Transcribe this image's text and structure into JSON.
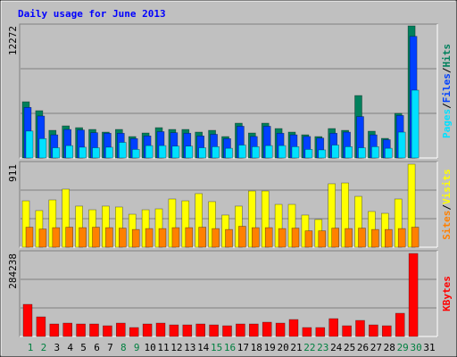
{
  "chart_data": [
    {
      "type": "bar",
      "title": "Daily usage for June 2013",
      "legend_separator": "/",
      "ylim": [
        0,
        12272
      ],
      "yticks": [
        12272
      ],
      "series": [
        {
          "name": "Hits",
          "color": "#00805c",
          "values": [
            5224,
            4395,
            2570,
            2985,
            2819,
            2653,
            2405,
            2653,
            1990,
            2322,
            2819,
            2653,
            2653,
            2405,
            2570,
            1990,
            3234,
            2322,
            3234,
            2736,
            2405,
            2156,
            1990,
            2736,
            2570,
            5804,
            2488,
            1824,
            4146,
            12272,
            0
          ]
        },
        {
          "name": "Files",
          "color": "#0040ff",
          "values": [
            4700,
            3900,
            2150,
            2650,
            2600,
            2350,
            2300,
            2300,
            1800,
            2050,
            2450,
            2350,
            2300,
            2050,
            2200,
            1800,
            2950,
            2000,
            2950,
            2300,
            2150,
            2000,
            1850,
            2300,
            2400,
            3850,
            2150,
            1700,
            3950,
            11300,
            0
          ]
        },
        {
          "name": "Pages",
          "color": "#00e0ff",
          "values": [
            2500,
            1800,
            950,
            1150,
            1000,
            950,
            1000,
            1450,
            800,
            1150,
            1150,
            1100,
            1100,
            950,
            1050,
            900,
            1200,
            1050,
            1150,
            1150,
            1050,
            800,
            750,
            1200,
            1050,
            950,
            1050,
            900,
            2400,
            6300,
            0
          ]
        }
      ]
    },
    {
      "type": "bar",
      "ylim": [
        0,
        911
      ],
      "yticks": [
        911
      ],
      "series": [
        {
          "name": "Visits",
          "color": "#ffff00",
          "values": [
            509,
            402,
            519,
            637,
            451,
            411,
            451,
            441,
            362,
            411,
            421,
            529,
            509,
            588,
            500,
            353,
            451,
            617,
            617,
            470,
            470,
            353,
            304,
            696,
            705,
            558,
            392,
            372,
            529,
            911,
            0
          ]
        },
        {
          "name": "Sites",
          "color": "#ff8000",
          "values": [
            220,
            200,
            215,
            220,
            215,
            220,
            215,
            210,
            195,
            205,
            205,
            215,
            215,
            220,
            205,
            195,
            230,
            215,
            215,
            205,
            210,
            180,
            180,
            210,
            205,
            210,
            195,
            195,
            205,
            220,
            0
          ]
        }
      ]
    },
    {
      "type": "bar",
      "ylim": [
        0,
        284238
      ],
      "yticks": [
        284238
      ],
      "categories": [
        1,
        2,
        3,
        4,
        5,
        6,
        7,
        8,
        9,
        10,
        11,
        12,
        13,
        14,
        15,
        16,
        17,
        18,
        19,
        20,
        21,
        22,
        23,
        24,
        25,
        26,
        27,
        28,
        29,
        30,
        31
      ],
      "category_color": "#000000",
      "weekend_color": "#008040",
      "weekends": [
        1,
        2,
        8,
        9,
        15,
        16,
        22,
        23,
        29,
        30
      ],
      "series": [
        {
          "name": "KBytes",
          "color": "#ff0000",
          "values": [
            110000,
            67200,
            42800,
            45800,
            42800,
            42800,
            36700,
            45800,
            30600,
            42800,
            45800,
            39700,
            39700,
            42800,
            39700,
            36700,
            42800,
            42800,
            48900,
            45800,
            58100,
            30600,
            30600,
            61100,
            36700,
            55000,
            39700,
            36700,
            79500,
            284238,
            0
          ]
        }
      ]
    }
  ]
}
